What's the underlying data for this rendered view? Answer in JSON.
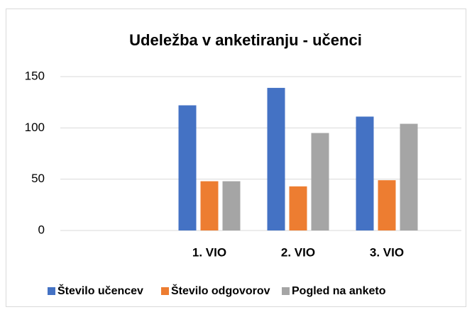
{
  "chart_data": {
    "type": "bar",
    "title": "Udeležba v anketiranju - učenci",
    "categories": [
      null,
      "1. VIO",
      "2. VIO",
      "3. VIO"
    ],
    "series": [
      {
        "name": "Število učencev",
        "color": "#4472c4",
        "values": [
          null,
          122,
          139,
          111
        ]
      },
      {
        "name": "Število odgovorov",
        "color": "#ed7d31",
        "values": [
          null,
          48,
          43,
          49
        ]
      },
      {
        "name": "Pogled na anketo",
        "color": "#a5a5a5",
        "values": [
          null,
          48,
          95,
          104
        ]
      }
    ],
    "ylim": [
      0,
      150
    ],
    "yticks": [
      0,
      50,
      100,
      150
    ],
    "grid": true,
    "legend": "bottom"
  }
}
